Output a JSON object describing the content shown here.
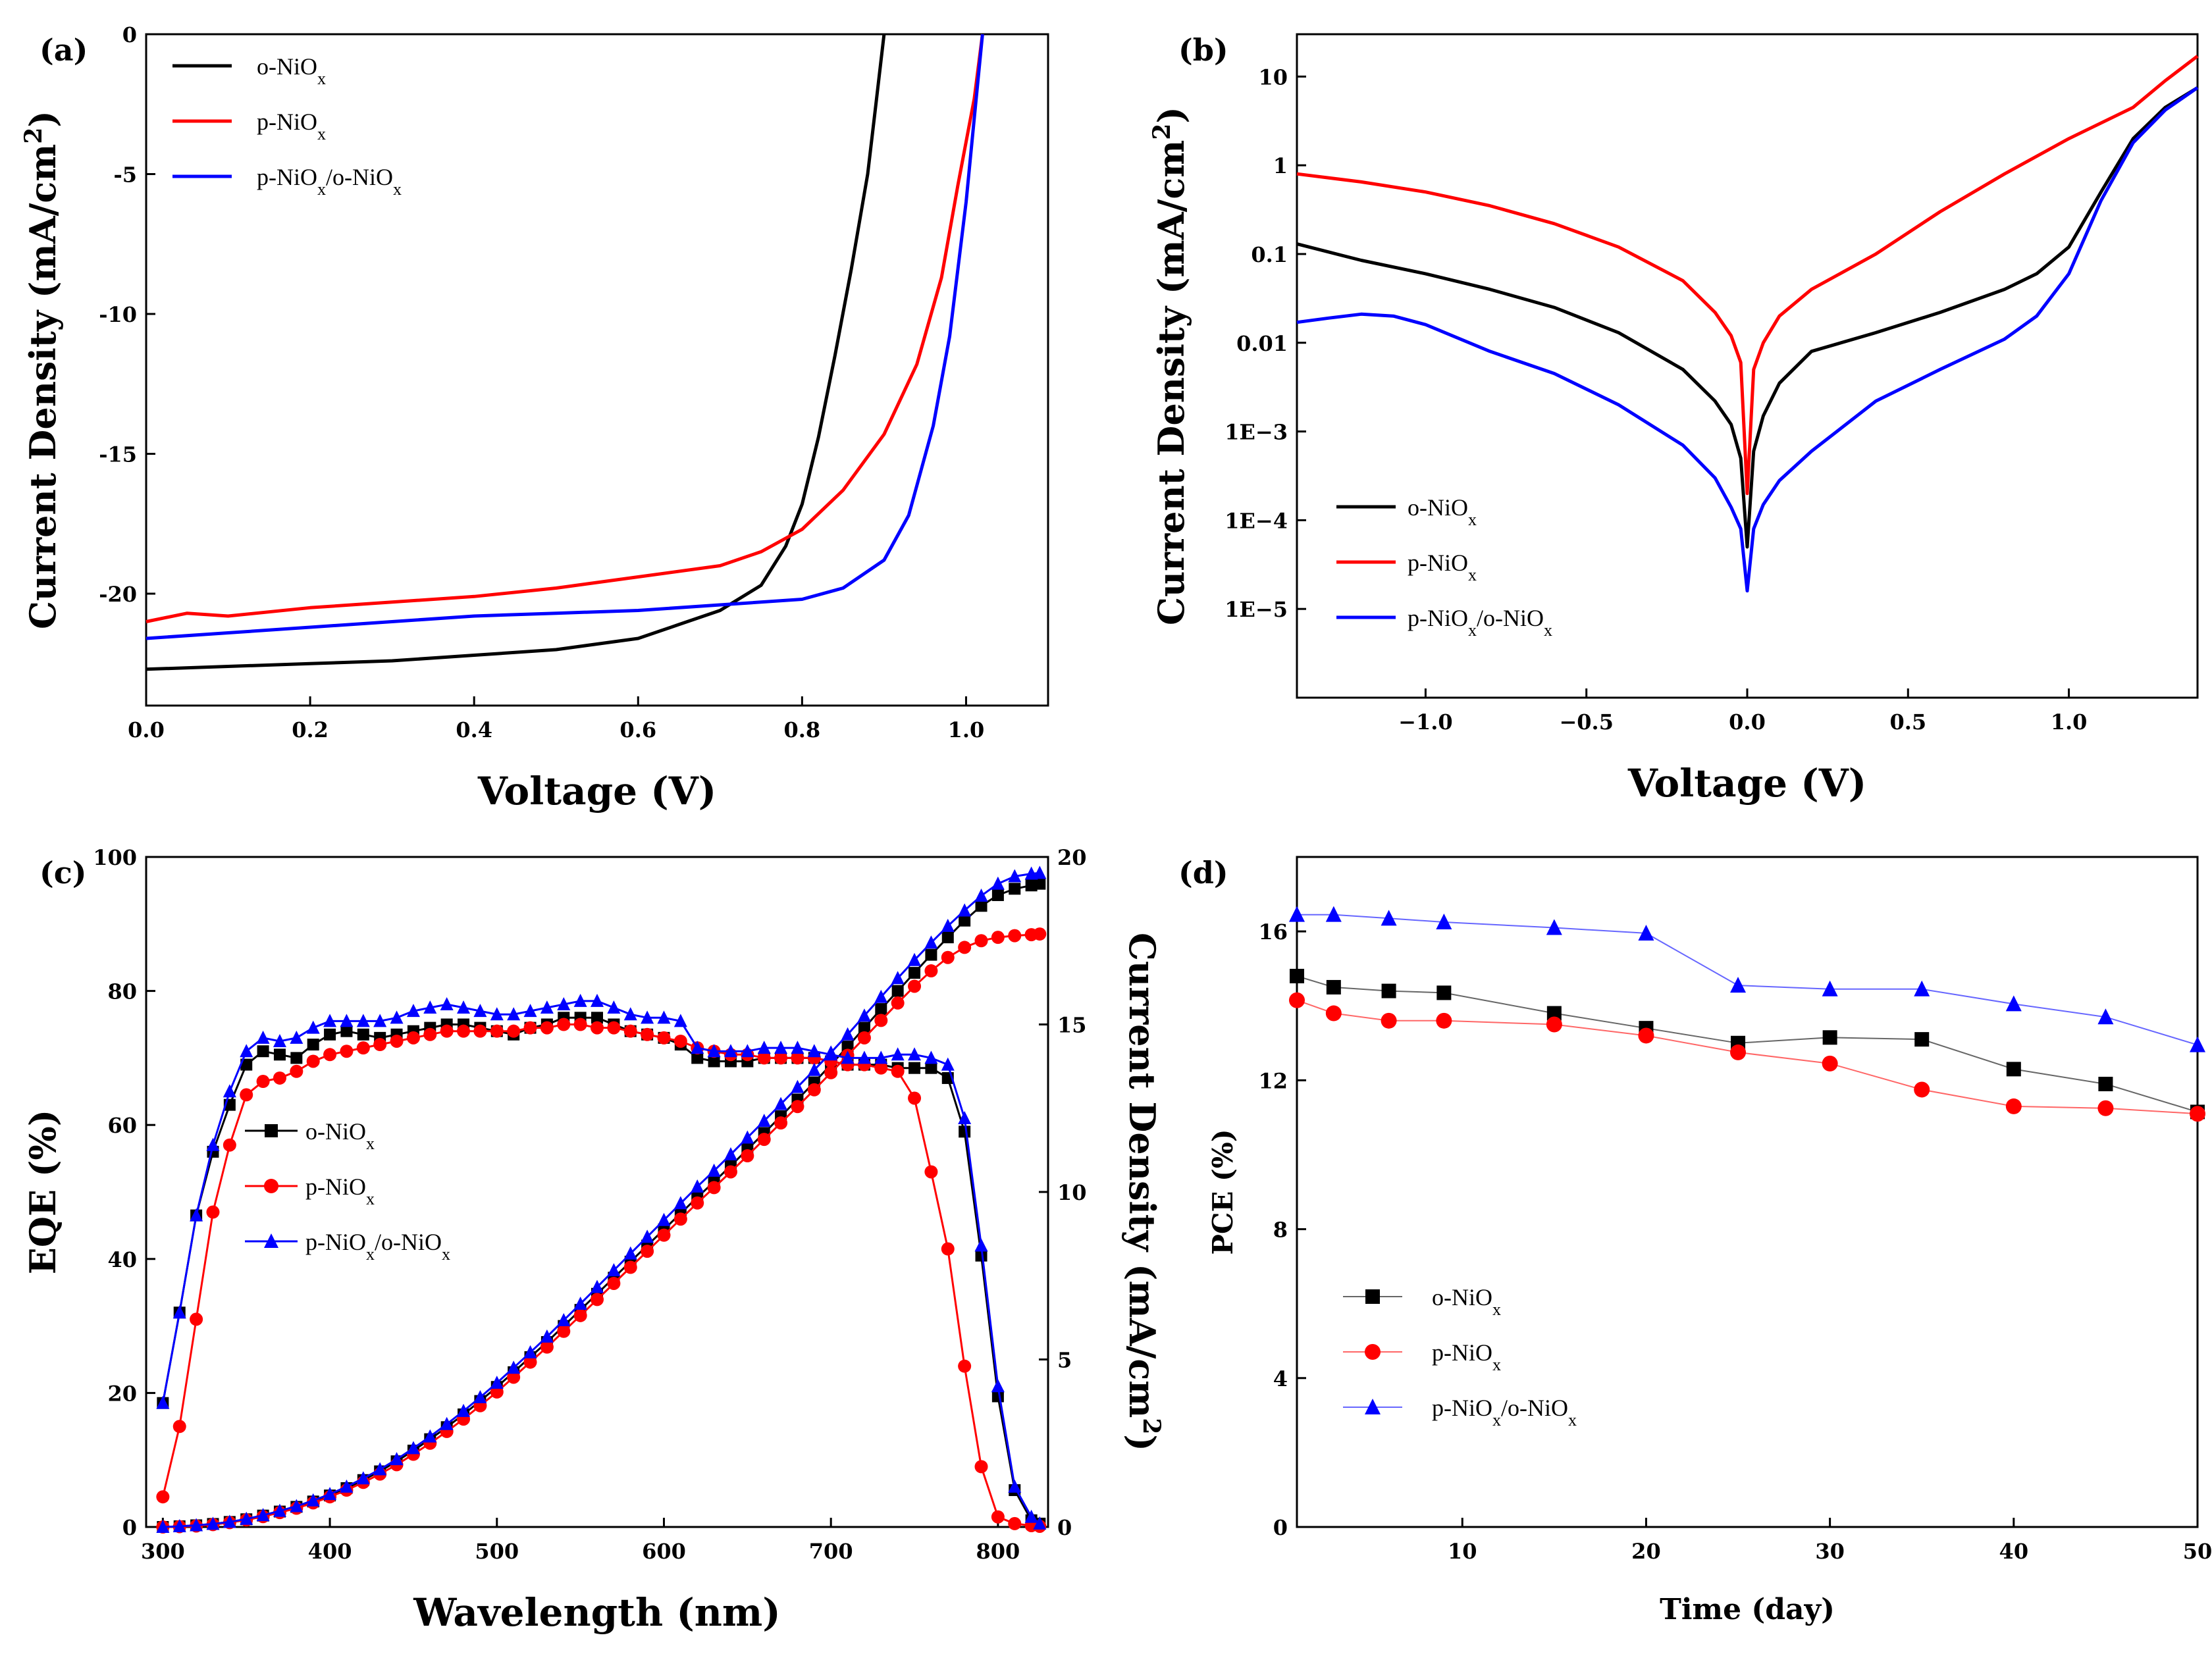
{
  "colors": {
    "black": "#000000",
    "red": "#ff0000",
    "blue": "#0000ff"
  },
  "chart_data": [
    {
      "id": "a",
      "panel_label": "(a)",
      "type": "line",
      "xlabel": "Voltage (V)",
      "ylabel": "Current Density (mA/cm",
      "ylabel_sup": "2",
      "ylabel_end": ")",
      "xlim": [
        0.0,
        1.1
      ],
      "ylim": [
        -24,
        0
      ],
      "xticks": [
        0.0,
        0.2,
        0.4,
        0.6,
        0.8,
        1.0
      ],
      "xtick_labels": [
        "0.0",
        "0.2",
        "0.4",
        "0.6",
        "0.8",
        "1.0"
      ],
      "yticks": [
        0,
        -5,
        -10,
        -15,
        -20
      ],
      "ytick_labels": [
        "0",
        "-5",
        "-10",
        "-15",
        "-20"
      ],
      "legend_position": "top-left",
      "series": [
        {
          "name": "o-NiO",
          "sub": "x",
          "color": "black",
          "x": [
            0,
            0.1,
            0.2,
            0.3,
            0.4,
            0.5,
            0.6,
            0.65,
            0.7,
            0.75,
            0.78,
            0.8,
            0.82,
            0.84,
            0.86,
            0.88,
            0.89,
            0.9
          ],
          "y": [
            -22.7,
            -22.6,
            -22.5,
            -22.4,
            -22.2,
            -22.0,
            -21.6,
            -21.1,
            -20.6,
            -19.7,
            -18.3,
            -16.8,
            -14.4,
            -11.5,
            -8.4,
            -5.0,
            -2.5,
            0
          ]
        },
        {
          "name": "p-NiO",
          "sub": "x",
          "color": "red",
          "x": [
            0,
            0.05,
            0.1,
            0.2,
            0.3,
            0.4,
            0.5,
            0.6,
            0.7,
            0.75,
            0.8,
            0.85,
            0.9,
            0.94,
            0.97,
            0.99,
            1.01,
            1.02
          ],
          "y": [
            -21.0,
            -20.7,
            -20.8,
            -20.5,
            -20.3,
            -20.1,
            -19.8,
            -19.4,
            -19.0,
            -18.5,
            -17.7,
            -16.3,
            -14.3,
            -11.8,
            -8.7,
            -5.4,
            -2.3,
            0
          ]
        },
        {
          "name": "p-NiO",
          "sub": "x",
          "name2": "/o-NiO",
          "sub2": "x",
          "color": "blue",
          "x": [
            0,
            0.1,
            0.2,
            0.3,
            0.4,
            0.5,
            0.6,
            0.7,
            0.8,
            0.85,
            0.9,
            0.93,
            0.96,
            0.98,
            1.0,
            1.01,
            1.02
          ],
          "y": [
            -21.6,
            -21.4,
            -21.2,
            -21.0,
            -20.8,
            -20.7,
            -20.6,
            -20.4,
            -20.2,
            -19.8,
            -18.8,
            -17.2,
            -14.0,
            -10.8,
            -6.0,
            -3.0,
            0
          ]
        }
      ]
    },
    {
      "id": "b",
      "panel_label": "(b)",
      "type": "line",
      "yscale": "log",
      "xlabel": "Voltage (V)",
      "ylabel": "Current Density (mA/cm",
      "ylabel_sup": "2",
      "ylabel_end": ")",
      "xlim": [
        -1.4,
        1.4
      ],
      "ylim": [
        1e-06,
        30
      ],
      "xticks": [
        -1.0,
        -0.5,
        0.0,
        0.5,
        1.0
      ],
      "xtick_labels": [
        "−1.0",
        "−0.5",
        "0.0",
        "0.5",
        "1.0"
      ],
      "yticks": [
        10,
        1,
        0.1,
        0.01,
        0.001,
        0.0001,
        1e-05
      ],
      "ytick_labels": [
        "10",
        "1",
        "0.1",
        "0.01",
        "1E−3",
        "1E−4",
        "1E−5"
      ],
      "legend_position": "bottom-left",
      "series": [
        {
          "name": "o-NiO",
          "sub": "x",
          "color": "black",
          "x": [
            -1.4,
            -1.2,
            -1.0,
            -0.8,
            -0.6,
            -0.4,
            -0.2,
            -0.1,
            -0.05,
            -0.02,
            0,
            0.02,
            0.05,
            0.1,
            0.2,
            0.4,
            0.6,
            0.8,
            0.9,
            1.0,
            1.1,
            1.2,
            1.3,
            1.4
          ],
          "y": [
            0.13,
            0.085,
            0.06,
            0.04,
            0.025,
            0.013,
            0.005,
            0.0022,
            0.0012,
            0.0005,
            5e-05,
            0.0006,
            0.0015,
            0.0035,
            0.008,
            0.013,
            0.022,
            0.04,
            0.06,
            0.12,
            0.5,
            2.0,
            4.5,
            7.5
          ]
        },
        {
          "name": "p-NiO",
          "sub": "x",
          "color": "red",
          "x": [
            -1.4,
            -1.2,
            -1.0,
            -0.8,
            -0.6,
            -0.4,
            -0.2,
            -0.1,
            -0.05,
            -0.02,
            0,
            0.02,
            0.05,
            0.1,
            0.2,
            0.4,
            0.6,
            0.8,
            1.0,
            1.2,
            1.3,
            1.4
          ],
          "y": [
            0.8,
            0.65,
            0.5,
            0.35,
            0.22,
            0.12,
            0.05,
            0.022,
            0.012,
            0.006,
            0.0002,
            0.005,
            0.01,
            0.02,
            0.04,
            0.1,
            0.3,
            0.8,
            2.0,
            4.5,
            9.0,
            17
          ]
        },
        {
          "name": "p-NiO",
          "sub": "x",
          "name2": "/o-NiO",
          "sub2": "x",
          "color": "blue",
          "x": [
            -1.4,
            -1.3,
            -1.2,
            -1.1,
            -1.0,
            -0.8,
            -0.6,
            -0.4,
            -0.2,
            -0.1,
            -0.05,
            -0.02,
            0,
            0.02,
            0.05,
            0.1,
            0.2,
            0.4,
            0.6,
            0.8,
            0.9,
            1.0,
            1.1,
            1.2,
            1.3,
            1.4
          ],
          "y": [
            0.017,
            0.019,
            0.021,
            0.02,
            0.016,
            0.008,
            0.0045,
            0.002,
            0.0007,
            0.0003,
            0.00014,
            8e-05,
            1.6e-05,
            8e-05,
            0.00015,
            0.00028,
            0.0006,
            0.0022,
            0.005,
            0.011,
            0.02,
            0.06,
            0.4,
            1.8,
            4.2,
            7.5
          ]
        }
      ]
    },
    {
      "id": "c",
      "panel_label": "(c)",
      "type": "line",
      "xlabel": "Wavelength (nm)",
      "ylabel": "EQE (%)",
      "y2label": "Current Density (mA/cm",
      "y2label_sup": "2",
      "y2label_end": ")",
      "xlim": [
        290,
        830
      ],
      "ylim": [
        0,
        100
      ],
      "y2lim": [
        0,
        20
      ],
      "xticks": [
        300,
        400,
        500,
        600,
        700,
        800
      ],
      "xtick_labels": [
        "300",
        "400",
        "500",
        "600",
        "700",
        "800"
      ],
      "yticks": [
        0,
        20,
        40,
        60,
        80,
        100
      ],
      "ytick_labels": [
        "0",
        "20",
        "40",
        "60",
        "80",
        "100"
      ],
      "y2ticks": [
        0,
        5,
        10,
        15,
        20
      ],
      "y2tick_labels": [
        "0",
        "5",
        "10",
        "15",
        "20"
      ],
      "legend_position": "center-left",
      "series": [
        {
          "name": "o-NiO",
          "sub": "x",
          "color": "black",
          "marker": "square",
          "x": [
            300,
            310,
            320,
            330,
            340,
            350,
            360,
            370,
            380,
            390,
            400,
            410,
            420,
            430,
            440,
            450,
            460,
            470,
            480,
            490,
            500,
            510,
            520,
            530,
            540,
            550,
            560,
            570,
            580,
            590,
            600,
            610,
            620,
            630,
            640,
            650,
            660,
            670,
            680,
            690,
            700,
            710,
            720,
            730,
            740,
            750,
            760,
            770,
            780,
            790,
            800,
            810,
            820,
            825
          ],
          "eqe": [
            18.5,
            32,
            46.5,
            56,
            63,
            69,
            71,
            70.5,
            70,
            72,
            73.5,
            74,
            73.5,
            73,
            73.5,
            74,
            74.5,
            75,
            75,
            74.5,
            74,
            73.5,
            74.5,
            75,
            76,
            76,
            76,
            75,
            74,
            73.5,
            73,
            72,
            70,
            69.5,
            69.5,
            69.5,
            70,
            70,
            70,
            70,
            69.5,
            69,
            69,
            69,
            68.5,
            68.5,
            68.5,
            67,
            59,
            40.5,
            19.5,
            5.5,
            1,
            0.5
          ],
          "jsc": [
            0.0,
            0.02,
            0.05,
            0.09,
            0.15,
            0.23,
            0.34,
            0.46,
            0.6,
            0.76,
            0.94,
            1.16,
            1.4,
            1.66,
            1.96,
            2.28,
            2.62,
            2.98,
            3.36,
            3.76,
            4.18,
            4.62,
            5.07,
            5.52,
            6.0,
            6.48,
            6.96,
            7.44,
            7.92,
            8.4,
            8.88,
            9.36,
            9.84,
            10.3,
            10.78,
            11.27,
            11.76,
            12.26,
            12.76,
            13.27,
            13.8,
            14.34,
            14.9,
            15.46,
            16.0,
            16.54,
            17.08,
            17.6,
            18.1,
            18.54,
            18.86,
            19.05,
            19.15,
            19.2
          ]
        },
        {
          "name": "p-NiO",
          "sub": "x",
          "color": "red",
          "marker": "circle",
          "x": [
            300,
            310,
            320,
            330,
            340,
            350,
            360,
            370,
            380,
            390,
            400,
            410,
            420,
            430,
            440,
            450,
            460,
            470,
            480,
            490,
            500,
            510,
            520,
            530,
            540,
            550,
            560,
            570,
            580,
            590,
            600,
            610,
            620,
            630,
            640,
            650,
            660,
            670,
            680,
            690,
            700,
            710,
            720,
            730,
            740,
            750,
            760,
            770,
            780,
            790,
            800,
            810,
            820,
            825
          ],
          "eqe": [
            4.5,
            15,
            31,
            47,
            57,
            64.5,
            66.5,
            67,
            68,
            69.5,
            70.5,
            71,
            71.5,
            72,
            72.5,
            73,
            73.5,
            74,
            74,
            74,
            74,
            74,
            74.5,
            74.5,
            75,
            75,
            74.5,
            74.5,
            74,
            73.5,
            73,
            72.5,
            71.5,
            71,
            70.5,
            70.5,
            70,
            70,
            70,
            70,
            69.5,
            69,
            69,
            68.5,
            68,
            64,
            53,
            41.5,
            24,
            9,
            1.5,
            0.5,
            0.2,
            0.1
          ],
          "jsc": [
            0.0,
            0.01,
            0.03,
            0.07,
            0.13,
            0.21,
            0.31,
            0.43,
            0.56,
            0.72,
            0.9,
            1.1,
            1.33,
            1.58,
            1.86,
            2.17,
            2.5,
            2.85,
            3.22,
            3.62,
            4.03,
            4.47,
            4.92,
            5.37,
            5.84,
            6.31,
            6.79,
            7.27,
            7.75,
            8.23,
            8.71,
            9.19,
            9.67,
            10.13,
            10.6,
            11.08,
            11.57,
            12.06,
            12.55,
            13.05,
            13.56,
            14.08,
            14.6,
            15.12,
            15.64,
            16.14,
            16.6,
            17.0,
            17.3,
            17.5,
            17.6,
            17.65,
            17.68,
            17.7
          ]
        },
        {
          "name": "p-NiO",
          "sub": "x",
          "name2": "/o-NiO",
          "sub2": "x",
          "color": "blue",
          "marker": "triangle",
          "x": [
            300,
            310,
            320,
            330,
            340,
            350,
            360,
            370,
            380,
            390,
            400,
            410,
            420,
            430,
            440,
            450,
            460,
            470,
            480,
            490,
            500,
            510,
            520,
            530,
            540,
            550,
            560,
            570,
            580,
            590,
            600,
            610,
            620,
            630,
            640,
            650,
            660,
            670,
            680,
            690,
            700,
            710,
            720,
            730,
            740,
            750,
            760,
            770,
            780,
            790,
            800,
            810,
            820,
            825
          ],
          "eqe": [
            18.5,
            32,
            46.5,
            57,
            65,
            71,
            73,
            72.5,
            73,
            74.5,
            75.5,
            75.5,
            75.5,
            75.5,
            76,
            77,
            77.5,
            78,
            77.5,
            77,
            76.5,
            76.5,
            77,
            77.5,
            78,
            78.5,
            78.5,
            77.5,
            76.5,
            76,
            76,
            75.5,
            71.5,
            71,
            71,
            71,
            71.5,
            71.5,
            71.5,
            71,
            70.5,
            70,
            70,
            70,
            70.5,
            70.5,
            70,
            69,
            61,
            42,
            21,
            6,
            1.5,
            0.5
          ],
          "jsc": [
            0.0,
            0.02,
            0.05,
            0.09,
            0.15,
            0.24,
            0.35,
            0.48,
            0.62,
            0.79,
            0.98,
            1.2,
            1.45,
            1.72,
            2.02,
            2.35,
            2.7,
            3.07,
            3.46,
            3.87,
            4.3,
            4.75,
            5.21,
            5.68,
            6.17,
            6.66,
            7.16,
            7.66,
            8.16,
            8.66,
            9.16,
            9.66,
            10.16,
            10.63,
            11.12,
            11.62,
            12.12,
            12.62,
            13.13,
            13.64,
            14.16,
            14.7,
            15.26,
            15.82,
            16.38,
            16.92,
            17.44,
            17.94,
            18.4,
            18.84,
            19.2,
            19.42,
            19.5,
            19.52
          ]
        }
      ]
    },
    {
      "id": "d",
      "panel_label": "(d)",
      "type": "line",
      "xlabel": "Time (day)",
      "ylabel": "PCE (%)",
      "xlim": [
        1,
        50
      ],
      "ylim": [
        0,
        18
      ],
      "xticks": [
        10,
        20,
        30,
        40,
        50
      ],
      "xtick_labels": [
        "10",
        "20",
        "30",
        "40",
        "50"
      ],
      "yticks": [
        0,
        4,
        8,
        12,
        16
      ],
      "ytick_labels": [
        "0",
        "4",
        "8",
        "12",
        "16"
      ],
      "legend_position": "bottom-left",
      "series": [
        {
          "name": "o-NiO",
          "sub": "x",
          "color": "black",
          "marker": "square",
          "x": [
            1,
            3,
            6,
            9,
            15,
            20,
            25,
            30,
            35,
            40,
            45,
            50
          ],
          "y": [
            14.8,
            14.5,
            14.4,
            14.35,
            13.8,
            13.4,
            13.0,
            13.15,
            13.1,
            12.3,
            11.9,
            11.15
          ]
        },
        {
          "name": "p-NiO",
          "sub": "x",
          "color": "red",
          "marker": "circle",
          "x": [
            1,
            3,
            6,
            9,
            15,
            20,
            25,
            30,
            35,
            40,
            45,
            50
          ],
          "y": [
            14.15,
            13.8,
            13.6,
            13.6,
            13.5,
            13.2,
            12.75,
            12.45,
            11.75,
            11.3,
            11.25,
            11.1
          ]
        },
        {
          "name": "p-NiO",
          "sub": "x",
          "name2": "/o-NiO",
          "sub2": "x",
          "color": "blue",
          "marker": "triangle",
          "x": [
            1,
            3,
            6,
            9,
            15,
            20,
            25,
            30,
            35,
            40,
            45,
            50
          ],
          "y": [
            16.45,
            16.45,
            16.35,
            16.25,
            16.1,
            15.95,
            14.55,
            14.45,
            14.45,
            14.05,
            13.7,
            12.95
          ]
        }
      ]
    }
  ]
}
